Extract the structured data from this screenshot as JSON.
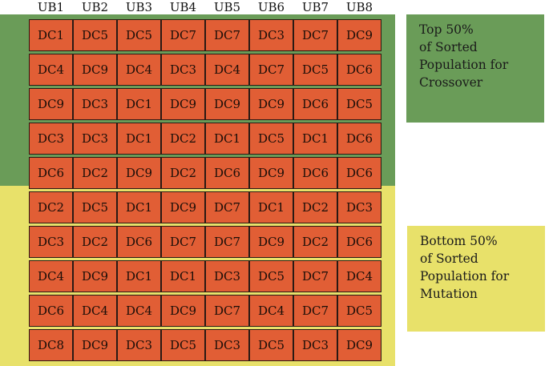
{
  "columns": [
    "UB1",
    "UB2",
    "UB3",
    "UB4",
    "UB5",
    "UB6",
    "UB7",
    "UB8"
  ],
  "rows": [
    [
      "DC1",
      "DC5",
      "DC5",
      "DC7",
      "DC7",
      "DC3",
      "DC7",
      "DC9"
    ],
    [
      "DC4",
      "DC9",
      "DC4",
      "DC3",
      "DC4",
      "DC7",
      "DC5",
      "DC6"
    ],
    [
      "DC9",
      "DC3",
      "DC1",
      "DC9",
      "DC9",
      "DC9",
      "DC6",
      "DC5"
    ],
    [
      "DC3",
      "DC3",
      "DC1",
      "DC2",
      "DC1",
      "DC5",
      "DC1",
      "DC6"
    ],
    [
      "DC6",
      "DC2",
      "DC9",
      "DC2",
      "DC6",
      "DC9",
      "DC6",
      "DC6"
    ],
    [
      "DC2",
      "DC5",
      "DC1",
      "DC9",
      "DC7",
      "DC1",
      "DC2",
      "DC3"
    ],
    [
      "DC3",
      "DC2",
      "DC6",
      "DC7",
      "DC7",
      "DC9",
      "DC2",
      "DC6"
    ],
    [
      "DC4",
      "DC9",
      "DC1",
      "DC1",
      "DC3",
      "DC5",
      "DC7",
      "DC4"
    ],
    [
      "DC6",
      "DC4",
      "DC4",
      "DC9",
      "DC7",
      "DC4",
      "DC7",
      "DC5"
    ],
    [
      "DC8",
      "DC9",
      "DC3",
      "DC5",
      "DC3",
      "DC5",
      "DC3",
      "DC9"
    ]
  ],
  "legend_top": {
    "lines": [
      "Top 50%",
      "of Sorted",
      "Population for",
      "Crossover"
    ]
  },
  "legend_bottom": {
    "lines": [
      "Bottom 50%",
      "of Sorted",
      "Population for",
      "Mutation"
    ]
  },
  "colors": {
    "top_band": "#6a9c58",
    "bottom_band": "#e8e16a",
    "cell": "#e15e35"
  }
}
